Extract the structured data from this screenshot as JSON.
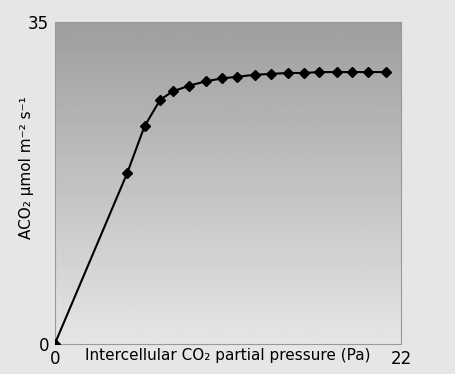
{
  "chart_data": {
    "type": "line",
    "x_label": "Intercellular CO₂ partial pressure (Pa)",
    "y_label": "ACO₂ µmol m⁻² s⁻¹",
    "x": [
      0,
      4.6,
      5.7,
      6.7,
      7.5,
      8.5,
      9.6,
      10.6,
      11.6,
      12.7,
      13.7,
      14.8,
      15.8,
      16.8,
      17.9,
      18.9,
      19.9,
      21.0
    ],
    "values": [
      0,
      18.6,
      23.7,
      26.6,
      27.5,
      28.1,
      28.6,
      28.9,
      29.1,
      29.3,
      29.4,
      29.5,
      29.5,
      29.6,
      29.6,
      29.6,
      29.6,
      29.6
    ],
    "color": "#000000",
    "marker": "D",
    "line_style": "solid",
    "xlim": [
      0,
      22
    ],
    "xticks": [
      0,
      22
    ],
    "ylim": [
      0,
      35
    ],
    "yticks": [
      0,
      35
    ],
    "grid": false
  }
}
